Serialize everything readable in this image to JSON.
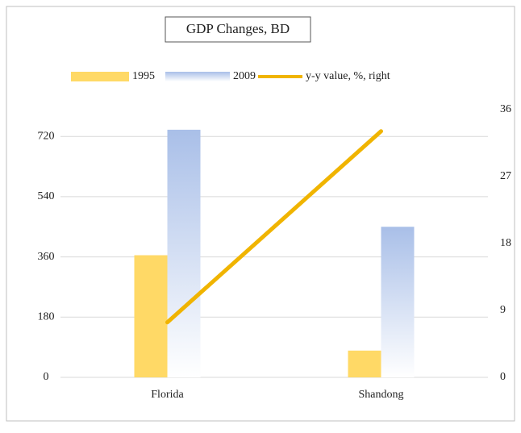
{
  "chart_data": {
    "type": "bar_line",
    "title": "GDP Changes, BD",
    "categories": [
      "Florida",
      "Shandong"
    ],
    "series": [
      {
        "name": "1995",
        "color": "#ffd966",
        "values": [
          365,
          80
        ]
      },
      {
        "name": "2009",
        "color": "#a9bfe8",
        "values": [
          740,
          450
        ]
      },
      {
        "name": "y-y value, %, right",
        "color": "#f0b400",
        "values": [
          7.4,
          33.1
        ],
        "axis": "y2",
        "type": "line"
      }
    ],
    "ylim": [
      0,
      800
    ],
    "yticks": [
      0,
      180,
      360,
      540,
      720
    ],
    "y2lim": [
      0,
      36
    ],
    "y2ticks": [
      0,
      9,
      18,
      27,
      36
    ],
    "grid": true,
    "legend": "top"
  }
}
